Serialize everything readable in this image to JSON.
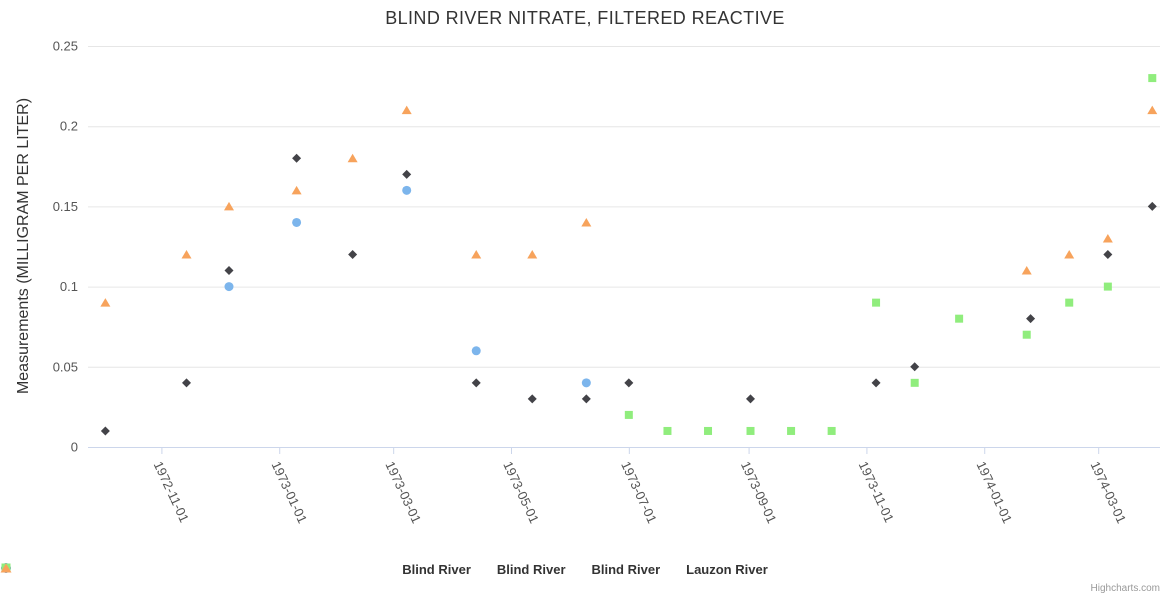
{
  "credits": {
    "label": "Highcharts.com"
  },
  "colors": {
    "series_blue": "#7cb5ec",
    "series_dark": "#434348",
    "series_green": "#90ed7d",
    "series_orange": "#f7a35c",
    "gridline": "#e6e6e6",
    "axis_line": "#ccd6eb",
    "title_text": "#333333",
    "axis_label_text": "#555555",
    "legend_text": "#333333",
    "credits_text": "#999999"
  },
  "chart_data": {
    "type": "scatter",
    "title": "BLIND RIVER NITRATE, FILTERED REACTIVE",
    "xlabel": "",
    "ylabel": "Measurements (MILLIGRAM PER LITER)",
    "ylim": [
      0,
      0.25
    ],
    "y_ticks": [
      0,
      0.05,
      0.1,
      0.15,
      0.2,
      0.25
    ],
    "y_tick_labels": [
      "0",
      "0.05",
      "0.1",
      "0.15",
      "0.2",
      "0.25"
    ],
    "x_range": [
      "1972-09-24",
      "1974-04-02"
    ],
    "x_ticks": [
      "1972-11-01",
      "1973-01-01",
      "1973-03-01",
      "1973-05-01",
      "1973-07-01",
      "1973-09-01",
      "1973-11-01",
      "1974-01-01",
      "1974-03-01"
    ],
    "x_tick_rotation_deg": 65,
    "grid": "horizontal",
    "legend_position": "bottom-center",
    "series": [
      {
        "name": "Blind River",
        "marker": "circle",
        "color": "#7cb5ec",
        "data": [
          [
            "1972-12-06",
            0.1
          ],
          [
            "1973-01-10",
            0.14
          ],
          [
            "1973-03-08",
            0.16
          ],
          [
            "1973-04-13",
            0.06
          ],
          [
            "1973-06-09",
            0.04
          ]
        ]
      },
      {
        "name": "Blind River",
        "marker": "diamond",
        "color": "#434348",
        "data": [
          [
            "1972-10-03",
            0.01
          ],
          [
            "1972-11-14",
            0.04
          ],
          [
            "1972-12-06",
            0.11
          ],
          [
            "1973-01-10",
            0.18
          ],
          [
            "1973-02-08",
            0.12
          ],
          [
            "1973-03-08",
            0.17
          ],
          [
            "1973-04-13",
            0.04
          ],
          [
            "1973-05-12",
            0.03
          ],
          [
            "1973-06-09",
            0.03
          ],
          [
            "1973-07-01",
            0.04
          ],
          [
            "1973-09-02",
            0.03
          ],
          [
            "1973-11-06",
            0.04
          ],
          [
            "1973-11-26",
            0.05
          ],
          [
            "1974-01-25",
            0.08
          ],
          [
            "1974-03-06",
            0.12
          ],
          [
            "1974-03-29",
            0.15
          ]
        ]
      },
      {
        "name": "Blind River",
        "marker": "square",
        "color": "#90ed7d",
        "data": [
          [
            "1973-07-01",
            0.02
          ],
          [
            "1973-07-21",
            0.01
          ],
          [
            "1973-08-11",
            0.01
          ],
          [
            "1973-09-02",
            0.01
          ],
          [
            "1973-09-23",
            0.01
          ],
          [
            "1973-10-14",
            0.01
          ],
          [
            "1973-11-06",
            0.09
          ],
          [
            "1973-11-26",
            0.04
          ],
          [
            "1973-12-19",
            0.08
          ],
          [
            "1974-01-23",
            0.07
          ],
          [
            "1974-02-14",
            0.09
          ],
          [
            "1974-03-06",
            0.1
          ],
          [
            "1974-03-29",
            0.23
          ]
        ]
      },
      {
        "name": "Lauzon River",
        "marker": "triangle",
        "color": "#f7a35c",
        "data": [
          [
            "1972-10-03",
            0.09
          ],
          [
            "1972-11-14",
            0.12
          ],
          [
            "1972-12-06",
            0.15
          ],
          [
            "1973-01-10",
            0.16
          ],
          [
            "1973-02-08",
            0.18
          ],
          [
            "1973-03-08",
            0.21
          ],
          [
            "1973-04-13",
            0.12
          ],
          [
            "1973-05-12",
            0.12
          ],
          [
            "1973-06-09",
            0.14
          ],
          [
            "1974-01-23",
            0.11
          ],
          [
            "1974-02-14",
            0.12
          ],
          [
            "1974-03-06",
            0.13
          ],
          [
            "1974-03-29",
            0.21
          ]
        ]
      }
    ]
  }
}
